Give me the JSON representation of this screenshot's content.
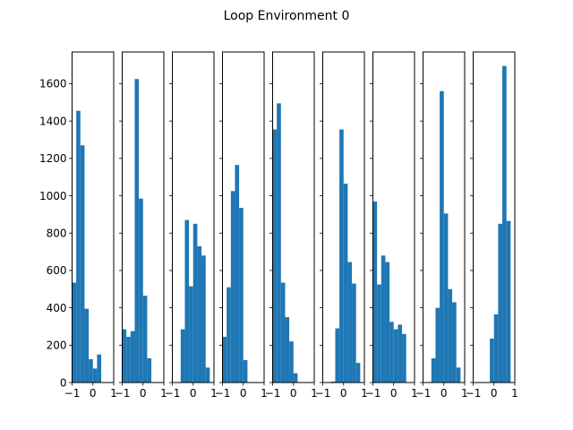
{
  "title": "Loop Environment 0",
  "chart_data": {
    "type": "bar",
    "layout": "9 histogram subplots in one row, shared y axis",
    "title": "Loop Environment 0",
    "bar_color": "#1f77b4",
    "xlim": [
      -1,
      1
    ],
    "ylim": [
      0,
      1770
    ],
    "x_ticks": [
      -1,
      0,
      1
    ],
    "x_tick_labels": [
      "−1",
      "0",
      "1"
    ],
    "y_ticks": [
      0,
      200,
      400,
      600,
      800,
      1000,
      1200,
      1400,
      1600
    ],
    "grid": false,
    "subplots": [
      {
        "bins": [
          {
            "x0": -1.0,
            "x1": -0.8,
            "count": 535
          },
          {
            "x0": -0.8,
            "x1": -0.6,
            "count": 1455
          },
          {
            "x0": -0.6,
            "x1": -0.4,
            "count": 1270
          },
          {
            "x0": -0.4,
            "x1": -0.2,
            "count": 395
          },
          {
            "x0": -0.2,
            "x1": 0.0,
            "count": 125
          },
          {
            "x0": 0.0,
            "x1": 0.2,
            "count": 75
          },
          {
            "x0": 0.2,
            "x1": 0.4,
            "count": 150
          }
        ]
      },
      {
        "bins": [
          {
            "x0": -1.0,
            "x1": -0.8,
            "count": 285
          },
          {
            "x0": -0.8,
            "x1": -0.6,
            "count": 245
          },
          {
            "x0": -0.6,
            "x1": -0.4,
            "count": 275
          },
          {
            "x0": -0.4,
            "x1": -0.2,
            "count": 1625
          },
          {
            "x0": -0.2,
            "x1": 0.0,
            "count": 985
          },
          {
            "x0": 0.0,
            "x1": 0.2,
            "count": 465
          },
          {
            "x0": 0.2,
            "x1": 0.4,
            "count": 130
          }
        ]
      },
      {
        "bins": [
          {
            "x0": -0.6,
            "x1": -0.4,
            "count": 285
          },
          {
            "x0": -0.4,
            "x1": -0.2,
            "count": 870
          },
          {
            "x0": -0.2,
            "x1": 0.0,
            "count": 515
          },
          {
            "x0": 0.0,
            "x1": 0.2,
            "count": 850
          },
          {
            "x0": 0.2,
            "x1": 0.4,
            "count": 730
          },
          {
            "x0": 0.4,
            "x1": 0.6,
            "count": 680
          },
          {
            "x0": 0.6,
            "x1": 0.8,
            "count": 80
          }
        ]
      },
      {
        "bins": [
          {
            "x0": -1.0,
            "x1": -0.8,
            "count": 245
          },
          {
            "x0": -0.8,
            "x1": -0.6,
            "count": 510
          },
          {
            "x0": -0.6,
            "x1": -0.4,
            "count": 1025
          },
          {
            "x0": -0.4,
            "x1": -0.2,
            "count": 1165
          },
          {
            "x0": -0.2,
            "x1": 0.0,
            "count": 935
          },
          {
            "x0": 0.0,
            "x1": 0.2,
            "count": 120
          }
        ]
      },
      {
        "bins": [
          {
            "x0": -1.0,
            "x1": -0.8,
            "count": 1355
          },
          {
            "x0": -0.8,
            "x1": -0.6,
            "count": 1495
          },
          {
            "x0": -0.6,
            "x1": -0.4,
            "count": 535
          },
          {
            "x0": -0.4,
            "x1": -0.2,
            "count": 350
          },
          {
            "x0": -0.2,
            "x1": 0.0,
            "count": 220
          },
          {
            "x0": 0.0,
            "x1": 0.2,
            "count": 50
          }
        ]
      },
      {
        "bins": [
          {
            "x0": -0.6,
            "x1": -0.4,
            "count": 5
          },
          {
            "x0": -0.4,
            "x1": -0.2,
            "count": 290
          },
          {
            "x0": -0.2,
            "x1": 0.0,
            "count": 1355
          },
          {
            "x0": 0.0,
            "x1": 0.2,
            "count": 1065
          },
          {
            "x0": 0.2,
            "x1": 0.4,
            "count": 645
          },
          {
            "x0": 0.4,
            "x1": 0.6,
            "count": 530
          },
          {
            "x0": 0.6,
            "x1": 0.8,
            "count": 105
          }
        ]
      },
      {
        "bins": [
          {
            "x0": -1.0,
            "x1": -0.8,
            "count": 970
          },
          {
            "x0": -0.8,
            "x1": -0.6,
            "count": 525
          },
          {
            "x0": -0.6,
            "x1": -0.4,
            "count": 680
          },
          {
            "x0": -0.4,
            "x1": -0.2,
            "count": 645
          },
          {
            "x0": -0.2,
            "x1": 0.0,
            "count": 325
          },
          {
            "x0": 0.0,
            "x1": 0.2,
            "count": 285
          },
          {
            "x0": 0.2,
            "x1": 0.4,
            "count": 310
          },
          {
            "x0": 0.4,
            "x1": 0.6,
            "count": 260
          }
        ]
      },
      {
        "bins": [
          {
            "x0": -0.6,
            "x1": -0.4,
            "count": 130
          },
          {
            "x0": -0.4,
            "x1": -0.2,
            "count": 400
          },
          {
            "x0": -0.2,
            "x1": 0.0,
            "count": 1560
          },
          {
            "x0": 0.0,
            "x1": 0.2,
            "count": 905
          },
          {
            "x0": 0.2,
            "x1": 0.4,
            "count": 500
          },
          {
            "x0": 0.4,
            "x1": 0.6,
            "count": 430
          },
          {
            "x0": 0.6,
            "x1": 0.8,
            "count": 80
          }
        ]
      },
      {
        "bins": [
          {
            "x0": -0.2,
            "x1": 0.0,
            "count": 235
          },
          {
            "x0": 0.0,
            "x1": 0.2,
            "count": 365
          },
          {
            "x0": 0.2,
            "x1": 0.4,
            "count": 850
          },
          {
            "x0": 0.4,
            "x1": 0.6,
            "count": 1695
          },
          {
            "x0": 0.6,
            "x1": 0.8,
            "count": 865
          }
        ]
      }
    ]
  }
}
